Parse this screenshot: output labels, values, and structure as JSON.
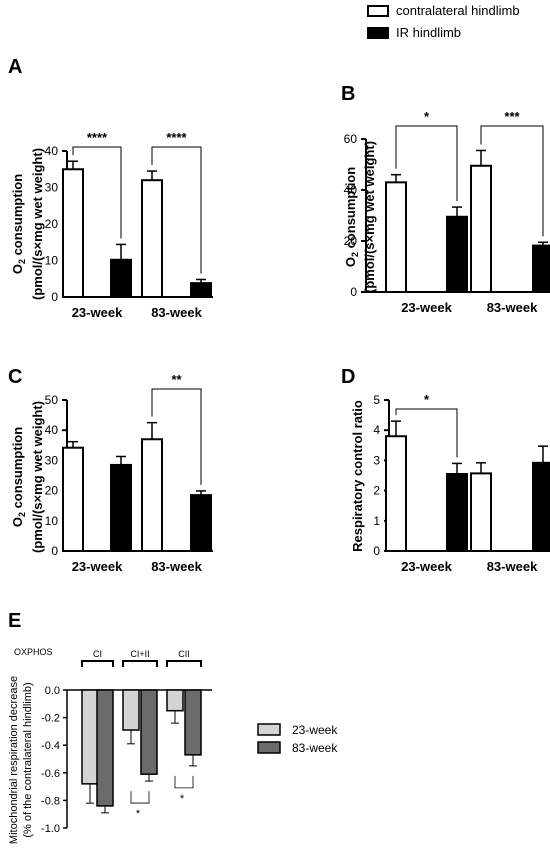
{
  "legend_top": {
    "items": [
      {
        "label": "contralateral hindlimb",
        "fill": "#ffffff"
      },
      {
        "label": "IR hindlimb",
        "fill": "#000000"
      }
    ]
  },
  "legend_e": {
    "items": [
      {
        "label": "23-week",
        "fill": "#d4d4d4"
      },
      {
        "label": "83-week",
        "fill": "#6b6b6b"
      }
    ]
  },
  "chart_data": [
    {
      "panel": "A",
      "type": "bar",
      "ylabel_line1": "O2 consumption",
      "ylabel_line2": "(pmol/(s×mg wet weight)",
      "ylim": [
        0,
        40
      ],
      "yticks": [
        "0",
        "10",
        "20",
        "30",
        "40"
      ],
      "categories": [
        "23-week",
        "83-week"
      ],
      "series": [
        {
          "name": "contralateral hindlimb",
          "values": [
            35,
            32
          ],
          "err": [
            2.2,
            2.5
          ]
        },
        {
          "name": "IR hindlimb",
          "values": [
            10.2,
            3.8
          ],
          "err": [
            4.2,
            1.0
          ]
        }
      ],
      "significance": [
        "****",
        "****"
      ]
    },
    {
      "panel": "B",
      "type": "bar",
      "ylabel_line1": "O2 consumption",
      "ylabel_line2": "(pmol/(s×mg wet weight)",
      "ylim": [
        0,
        60
      ],
      "yticks": [
        "0",
        "20",
        "40",
        "60"
      ],
      "categories": [
        "23-week",
        "83-week"
      ],
      "series": [
        {
          "name": "contralateral hindlimb",
          "values": [
            43,
            49.5
          ],
          "err": [
            3,
            6
          ]
        },
        {
          "name": "IR hindlimb",
          "values": [
            29.5,
            18.2
          ],
          "err": [
            3.8,
            1.3
          ]
        }
      ],
      "significance": [
        "*",
        "***"
      ]
    },
    {
      "panel": "C",
      "type": "bar",
      "ylabel_line1": "O2 consumption",
      "ylabel_line2": "(pmol/(s×mg wet weight)",
      "ylim": [
        0,
        50
      ],
      "yticks": [
        "0",
        "10",
        "20",
        "30",
        "40",
        "50"
      ],
      "categories": [
        "23-week",
        "83-week"
      ],
      "series": [
        {
          "name": "contralateral hindlimb",
          "values": [
            34.2,
            37
          ],
          "err": [
            2,
            5.5
          ]
        },
        {
          "name": "IR hindlimb",
          "values": [
            28.5,
            18.5
          ],
          "err": [
            2.8,
            1.4
          ]
        }
      ],
      "significance": [
        "",
        "**"
      ]
    },
    {
      "panel": "D",
      "type": "bar",
      "ylabel_line1": "Respiratory control ratio",
      "ylabel_line2": "",
      "ylim": [
        0,
        5
      ],
      "yticks": [
        "0",
        "1",
        "2",
        "3",
        "4",
        "5"
      ],
      "categories": [
        "23-week",
        "83-week"
      ],
      "series": [
        {
          "name": "contralateral hindlimb",
          "values": [
            3.8,
            2.57
          ],
          "err": [
            0.5,
            0.35
          ]
        },
        {
          "name": "IR hindlimb",
          "values": [
            2.55,
            2.92
          ],
          "err": [
            0.35,
            0.55
          ]
        }
      ],
      "significance": [
        "*",
        ""
      ]
    },
    {
      "panel": "E",
      "type": "bar",
      "ylabel_line1": "Mitochondrial respiration decrease",
      "ylabel_line2": "(% of the contralateral hindlimb)",
      "ylim": [
        -1.0,
        0.0
      ],
      "yticks": [
        "0.0",
        "-0.2",
        "-0.4",
        "-0.6",
        "-0.8",
        "-1.0"
      ],
      "group_header": "OXPHOS",
      "categories": [
        "CI",
        "CI+II",
        "CII"
      ],
      "series": [
        {
          "name": "23-week",
          "values": [
            -0.68,
            -0.29,
            -0.15
          ],
          "err": [
            0.14,
            0.1,
            0.09
          ]
        },
        {
          "name": "83-week",
          "values": [
            -0.84,
            -0.61,
            -0.47
          ],
          "err": [
            0.05,
            0.05,
            0.08
          ]
        }
      ],
      "significance": [
        "",
        "*",
        "*"
      ]
    }
  ]
}
